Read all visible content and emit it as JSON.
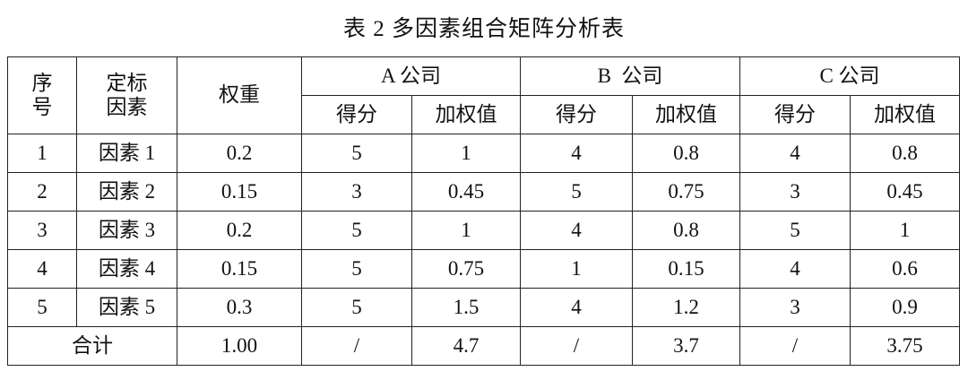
{
  "title": "表 2  多因素组合矩阵分析表",
  "header": {
    "index": "序号",
    "factor": "定标因素",
    "weight": "权重",
    "companies": [
      "A 公司",
      "B  公司",
      "C 公司"
    ],
    "score": "得分",
    "weighted": "加权值"
  },
  "rows": [
    {
      "index": "1",
      "factor": "因素 1",
      "weight": "0.2",
      "cells": [
        "5",
        "1",
        "4",
        "0.8",
        "4",
        "0.8"
      ]
    },
    {
      "index": "2",
      "factor": "因素 2",
      "weight": "0.15",
      "cells": [
        "3",
        "0.45",
        "5",
        "0.75",
        "3",
        "0.45"
      ]
    },
    {
      "index": "3",
      "factor": "因素 3",
      "weight": "0.2",
      "cells": [
        "5",
        "1",
        "4",
        "0.8",
        "5",
        "1"
      ]
    },
    {
      "index": "4",
      "factor": "因素 4",
      "weight": "0.15",
      "cells": [
        "5",
        "0.75",
        "1",
        "0.15",
        "4",
        "0.6"
      ]
    },
    {
      "index": "5",
      "factor": "因素 5",
      "weight": "0.3",
      "cells": [
        "5",
        "1.5",
        "4",
        "1.2",
        "3",
        "0.9"
      ]
    }
  ],
  "total": {
    "label": "合计",
    "weight": "1.00",
    "cells": [
      "/",
      "4.7",
      "/",
      "3.7",
      "/",
      "3.75"
    ]
  }
}
